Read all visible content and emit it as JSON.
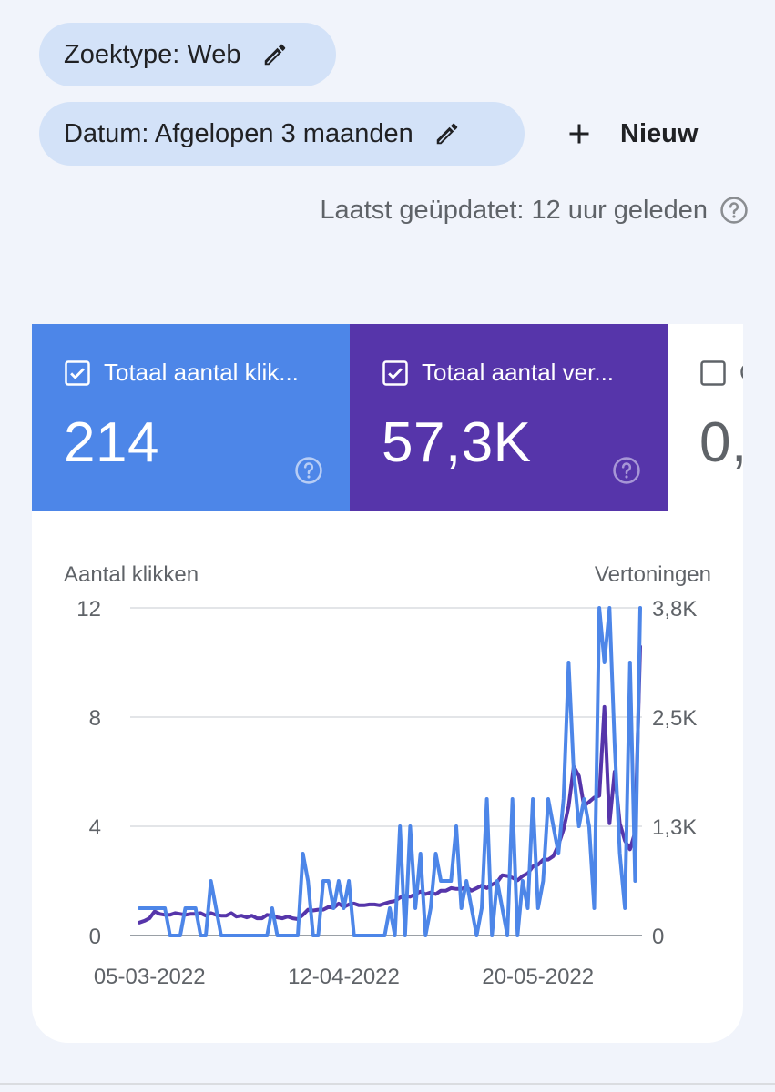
{
  "filters": {
    "search_type_label": "Zoektype: Web",
    "date_label": "Datum: Afgelopen 3 maanden",
    "new_label": "Nieuw"
  },
  "last_updated": "Laatst geüpdatet: 12 uur geleden",
  "metrics": [
    {
      "label": "Totaal aantal klik...",
      "value": "214",
      "checked": true,
      "color": "#4d86e8"
    },
    {
      "label": "Totaal aantal ver...",
      "value": "57,3K",
      "checked": true,
      "color": "#5635aa"
    },
    {
      "label": "G",
      "value": "0,",
      "checked": false,
      "color": "#ffffff"
    }
  ],
  "chart_data": {
    "type": "line",
    "y_left_label": "Aantal klikken",
    "y_right_label": "Vertoningen",
    "y_left_ticks": [
      "12",
      "8",
      "4",
      "0"
    ],
    "y_right_ticks": [
      "3,8K",
      "2,5K",
      "1,3K",
      "0"
    ],
    "y_left_range": [
      0,
      12
    ],
    "y_right_range": [
      0,
      3800
    ],
    "x_tick_labels": [
      "05-03-2022",
      "12-04-2022",
      "20-05-2022"
    ],
    "x_start": "2022-03-03",
    "grid": true,
    "series": [
      {
        "name": "Totaal aantal klikken",
        "axis": "left",
        "color": "#4d86e8",
        "values": [
          1,
          1,
          1,
          1,
          1,
          1,
          0,
          0,
          0,
          1,
          1,
          1,
          0,
          0,
          2,
          1,
          0,
          0,
          0,
          0,
          0,
          0,
          0,
          0,
          0,
          0,
          1,
          0,
          0,
          0,
          0,
          0,
          3,
          2,
          0,
          0,
          2,
          2,
          1,
          2,
          1,
          2,
          0,
          0,
          0,
          0,
          0,
          0,
          0,
          1,
          0,
          4,
          0,
          4,
          1,
          3,
          0,
          1,
          3,
          2,
          2,
          2,
          4,
          1,
          2,
          1,
          0,
          1,
          5,
          0,
          2,
          1,
          0,
          5,
          0,
          2,
          1,
          5,
          1,
          2,
          5,
          4,
          3,
          5,
          10,
          6,
          4,
          5,
          4,
          1,
          12,
          10,
          12,
          7,
          3,
          1,
          10,
          2,
          12
        ]
      },
      {
        "name": "Totaal aantal vertoningen",
        "axis": "right",
        "color": "#5635aa",
        "values": [
          150,
          170,
          200,
          280,
          250,
          240,
          240,
          260,
          250,
          240,
          250,
          250,
          260,
          230,
          260,
          240,
          230,
          230,
          260,
          220,
          230,
          210,
          230,
          200,
          200,
          240,
          230,
          210,
          200,
          220,
          200,
          190,
          240,
          300,
          290,
          300,
          300,
          330,
          320,
          370,
          330,
          360,
          370,
          350,
          350,
          360,
          360,
          350,
          370,
          390,
          400,
          440,
          460,
          450,
          480,
          510,
          480,
          500,
          480,
          520,
          520,
          550,
          540,
          540,
          560,
          520,
          550,
          580,
          550,
          590,
          620,
          700,
          690,
          670,
          640,
          690,
          720,
          800,
          820,
          880,
          880,
          920,
          1050,
          1230,
          1500,
          1960,
          1850,
          1500,
          1550,
          1600,
          1620,
          2650,
          1300,
          1900,
          1300,
          1100,
          1000,
          1200,
          3350
        ]
      }
    ]
  }
}
